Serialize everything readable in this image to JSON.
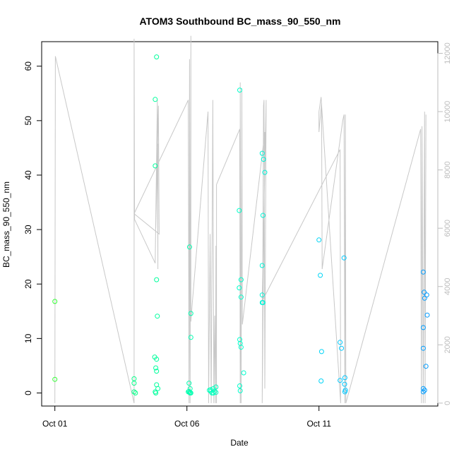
{
  "chart_data": {
    "type": "scatter",
    "title": "ATOM3 Southbound BC_mass_90_550_nm",
    "xlabel": "Date",
    "ylabel": "BC_mass_90_550_nm",
    "x_ticks": [
      {
        "label": "Oct 01",
        "day": 1
      },
      {
        "label": "Oct 06",
        "day": 6
      },
      {
        "label": "Oct 11",
        "day": 11
      }
    ],
    "y_ticks": [
      0,
      10,
      20,
      30,
      40,
      50,
      60
    ],
    "y_right_ticks": [
      0,
      2000,
      4000,
      6000,
      8000,
      10000,
      12000
    ],
    "xlim": [
      0.5,
      15.5
    ],
    "ylim": [
      -2.4,
      64.5
    ],
    "y_right_lim": [
      -100,
      12400
    ],
    "grid": false,
    "colors": {
      "axis": "#000000",
      "right_axis": "#bdbdbd",
      "altitude_line": "#c8c8c8",
      "color_ramp": [
        "#33ff33",
        "#00ff99",
        "#00ffcc",
        "#00ccff",
        "#0099ff"
      ]
    },
    "series": [
      {
        "marker": "circle-open",
        "color_by": "date",
        "points": [
          [
            1.0,
            16.8
          ],
          [
            1.0,
            2.5
          ],
          [
            4.0,
            2.6
          ],
          [
            4.0,
            1.8
          ],
          [
            4.0,
            0.2
          ],
          [
            4.05,
            0.0
          ],
          [
            4.85,
            61.7
          ],
          [
            4.8,
            53.9
          ],
          [
            4.8,
            41.7
          ],
          [
            4.85,
            20.8
          ],
          [
            4.88,
            14.1
          ],
          [
            4.78,
            6.6
          ],
          [
            4.85,
            6.2
          ],
          [
            4.82,
            4.6
          ],
          [
            4.85,
            4.0
          ],
          [
            4.85,
            1.5
          ],
          [
            4.9,
            0.8
          ],
          [
            4.8,
            0.2
          ],
          [
            4.82,
            0.0
          ],
          [
            6.1,
            26.8
          ],
          [
            6.15,
            14.6
          ],
          [
            6.15,
            10.2
          ],
          [
            6.08,
            1.8
          ],
          [
            6.12,
            0.8
          ],
          [
            6.08,
            0.3
          ],
          [
            6.1,
            0.1
          ],
          [
            6.12,
            0.0
          ],
          [
            6.15,
            0.0
          ],
          [
            6.05,
            0.2
          ],
          [
            6.85,
            0.5
          ],
          [
            6.9,
            0.3
          ],
          [
            6.95,
            0.0
          ],
          [
            7.0,
            0.8
          ],
          [
            7.05,
            0.3
          ],
          [
            7.1,
            1.1
          ],
          [
            7.0,
            0.0
          ],
          [
            6.9,
            0.6
          ],
          [
            7.1,
            0.1
          ],
          [
            8.0,
            55.6
          ],
          [
            7.98,
            33.5
          ],
          [
            8.05,
            20.8
          ],
          [
            7.98,
            19.3
          ],
          [
            8.05,
            17.6
          ],
          [
            8.0,
            9.8
          ],
          [
            8.02,
            9.1
          ],
          [
            8.05,
            8.4
          ],
          [
            8.15,
            3.7
          ],
          [
            8.0,
            1.3
          ],
          [
            8.02,
            0.4
          ],
          [
            8.85,
            44.0
          ],
          [
            8.9,
            42.9
          ],
          [
            8.95,
            40.5
          ],
          [
            8.88,
            32.6
          ],
          [
            8.85,
            23.4
          ],
          [
            8.85,
            18.0
          ],
          [
            8.85,
            16.6
          ],
          [
            8.88,
            16.6
          ],
          [
            11.0,
            28.1
          ],
          [
            11.05,
            21.6
          ],
          [
            11.1,
            7.6
          ],
          [
            11.08,
            2.2
          ],
          [
            11.8,
            9.3
          ],
          [
            11.85,
            8.2
          ],
          [
            11.8,
            2.3
          ],
          [
            11.95,
            24.8
          ],
          [
            11.98,
            2.8
          ],
          [
            11.97,
            1.6
          ],
          [
            11.98,
            0.2
          ],
          [
            12.0,
            0.5
          ],
          [
            14.95,
            22.2
          ],
          [
            14.98,
            18.5
          ],
          [
            15.0,
            17.4
          ],
          [
            15.08,
            18.0
          ],
          [
            15.1,
            14.3
          ],
          [
            14.95,
            12.0
          ],
          [
            14.95,
            8.2
          ],
          [
            15.05,
            4.9
          ],
          [
            14.95,
            0.8
          ],
          [
            15.0,
            0.5
          ],
          [
            14.95,
            0.2
          ]
        ]
      }
    ],
    "altitude_trace": [
      [
        1.0,
        0
      ],
      [
        1.02,
        11900
      ],
      [
        4.0,
        0
      ],
      [
        4.0,
        12500
      ],
      [
        4.02,
        6300
      ],
      [
        4.8,
        4800
      ],
      [
        4.88,
        10400
      ],
      [
        4.9,
        4600
      ],
      [
        4.9,
        8900
      ],
      [
        4.82,
        6000
      ],
      [
        4.92,
        10200
      ],
      [
        4.95,
        5800
      ],
      [
        4.0,
        6500
      ],
      [
        6.05,
        10400
      ],
      [
        6.08,
        0
      ],
      [
        6.1,
        11800
      ],
      [
        6.12,
        0
      ],
      [
        6.15,
        12600
      ],
      [
        6.15,
        2800
      ],
      [
        6.2,
        3400
      ],
      [
        6.8,
        10000
      ],
      [
        6.82,
        0
      ],
      [
        6.88,
        5800
      ],
      [
        6.92,
        0
      ],
      [
        6.98,
        10400
      ],
      [
        7.02,
        0
      ],
      [
        7.05,
        3000
      ],
      [
        7.08,
        0
      ],
      [
        7.1,
        5400
      ],
      [
        7.12,
        0
      ],
      [
        7.12,
        7500
      ],
      [
        8.0,
        9400
      ],
      [
        8.02,
        0
      ],
      [
        8.02,
        11000
      ],
      [
        8.05,
        0
      ],
      [
        8.08,
        10800
      ],
      [
        8.1,
        2700
      ],
      [
        8.95,
        9300
      ],
      [
        8.85,
        0
      ],
      [
        8.9,
        10200
      ],
      [
        8.92,
        10400
      ],
      [
        8.95,
        500
      ],
      [
        9.0,
        10400
      ],
      [
        8.85,
        3500
      ],
      [
        11.8,
        8700
      ],
      [
        11.82,
        0
      ],
      [
        11.08,
        10500
      ],
      [
        11.0,
        10000
      ],
      [
        11.0,
        9300
      ],
      [
        11.1,
        10300
      ],
      [
        11.12,
        4600
      ],
      [
        11.9,
        9700
      ],
      [
        11.95,
        9900
      ],
      [
        11.98,
        0
      ],
      [
        12.0,
        9900
      ],
      [
        12.02,
        0
      ],
      [
        14.85,
        9400
      ],
      [
        14.88,
        0
      ],
      [
        14.9,
        9500
      ],
      [
        14.95,
        0
      ],
      [
        15.0,
        10000
      ],
      [
        15.02,
        0
      ],
      [
        15.05,
        9900
      ]
    ]
  }
}
